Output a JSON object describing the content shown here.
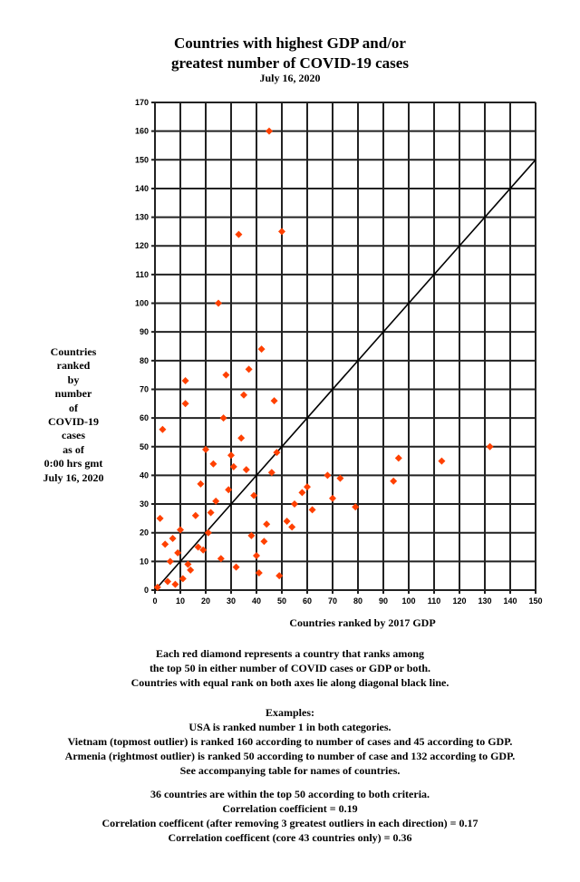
{
  "chart_data": {
    "type": "scatter",
    "title": "Countries with highest GDP and/or greatest number of COVID-19 cases",
    "title_lines": [
      "Countries with highest GDP and/or",
      "greatest number of COVID-19 cases"
    ],
    "subtitle": "July 16, 2020",
    "xlabel": "Countries ranked by 2017 GDP",
    "ylabel_lines": [
      "Countries",
      "ranked",
      "by",
      "number",
      "of",
      "COVID-19",
      "cases",
      "as of",
      "0:00 hrs gmt",
      "July 16, 2020"
    ],
    "xlim": [
      0,
      150
    ],
    "ylim": [
      0,
      170
    ],
    "xticks": [
      0,
      10,
      20,
      30,
      40,
      50,
      60,
      70,
      80,
      90,
      100,
      110,
      120,
      130,
      140,
      150
    ],
    "yticks": [
      0,
      10,
      20,
      30,
      40,
      50,
      60,
      70,
      80,
      90,
      100,
      110,
      120,
      130,
      140,
      150,
      160,
      170
    ],
    "grid": true,
    "diagonal": {
      "from": [
        0,
        0
      ],
      "to": [
        150,
        150
      ],
      "color": "#000000"
    },
    "marker_color": "#ff4000",
    "points": [
      [
        1,
        1
      ],
      [
        2,
        25
      ],
      [
        3,
        56
      ],
      [
        4,
        16
      ],
      [
        5,
        3
      ],
      [
        6,
        10
      ],
      [
        7,
        18
      ],
      [
        8,
        2
      ],
      [
        9,
        13
      ],
      [
        10,
        21
      ],
      [
        11,
        4
      ],
      [
        12,
        65
      ],
      [
        12,
        73
      ],
      [
        13,
        9
      ],
      [
        14,
        7
      ],
      [
        16,
        26
      ],
      [
        17,
        15
      ],
      [
        18,
        37
      ],
      [
        19,
        14
      ],
      [
        20,
        49
      ],
      [
        21,
        20
      ],
      [
        22,
        27
      ],
      [
        23,
        44
      ],
      [
        24,
        31
      ],
      [
        25,
        100
      ],
      [
        26,
        11
      ],
      [
        27,
        60
      ],
      [
        28,
        75
      ],
      [
        29,
        35
      ],
      [
        30,
        47
      ],
      [
        31,
        43
      ],
      [
        32,
        8
      ],
      [
        33,
        124
      ],
      [
        34,
        53
      ],
      [
        35,
        68
      ],
      [
        36,
        42
      ],
      [
        37,
        77
      ],
      [
        38,
        19
      ],
      [
        39,
        33
      ],
      [
        40,
        12
      ],
      [
        41,
        6
      ],
      [
        42,
        84
      ],
      [
        43,
        17
      ],
      [
        44,
        23
      ],
      [
        45,
        160
      ],
      [
        46,
        41
      ],
      [
        47,
        66
      ],
      [
        48,
        48
      ],
      [
        49,
        5
      ],
      [
        50,
        125
      ],
      [
        52,
        24
      ],
      [
        54,
        22
      ],
      [
        55,
        30
      ],
      [
        58,
        34
      ],
      [
        60,
        36
      ],
      [
        62,
        28
      ],
      [
        68,
        40
      ],
      [
        70,
        32
      ],
      [
        73,
        39
      ],
      [
        79,
        29
      ],
      [
        94,
        38
      ],
      [
        96,
        46
      ],
      [
        113,
        45
      ],
      [
        132,
        50
      ]
    ]
  },
  "notes": [
    "Each red diamond represents a country that ranks among",
    "the top 50  in either number of COVID cases or GDP or both.",
    "Countries with equal rank on both axes lie along diagonal black line.",
    "Examples:",
    "USA is ranked number 1 in both categories.",
    "Vietnam (topmost outlier) is ranked 160 according to number of cases and 45 according to GDP.",
    "Armenia (rightmost outlier) is ranked 50 according to number of case and 132 according to GDP.",
    "See accompanying table for names of countries.",
    "36 countries are within the top 50 according to both criteria.",
    "Correlation coefficient = 0.19",
    "Correlation coefficent (after removing 3 greatest outliers in each direction) = 0.17",
    "Correlation coefficent (core 43 countries only) = 0.36"
  ]
}
